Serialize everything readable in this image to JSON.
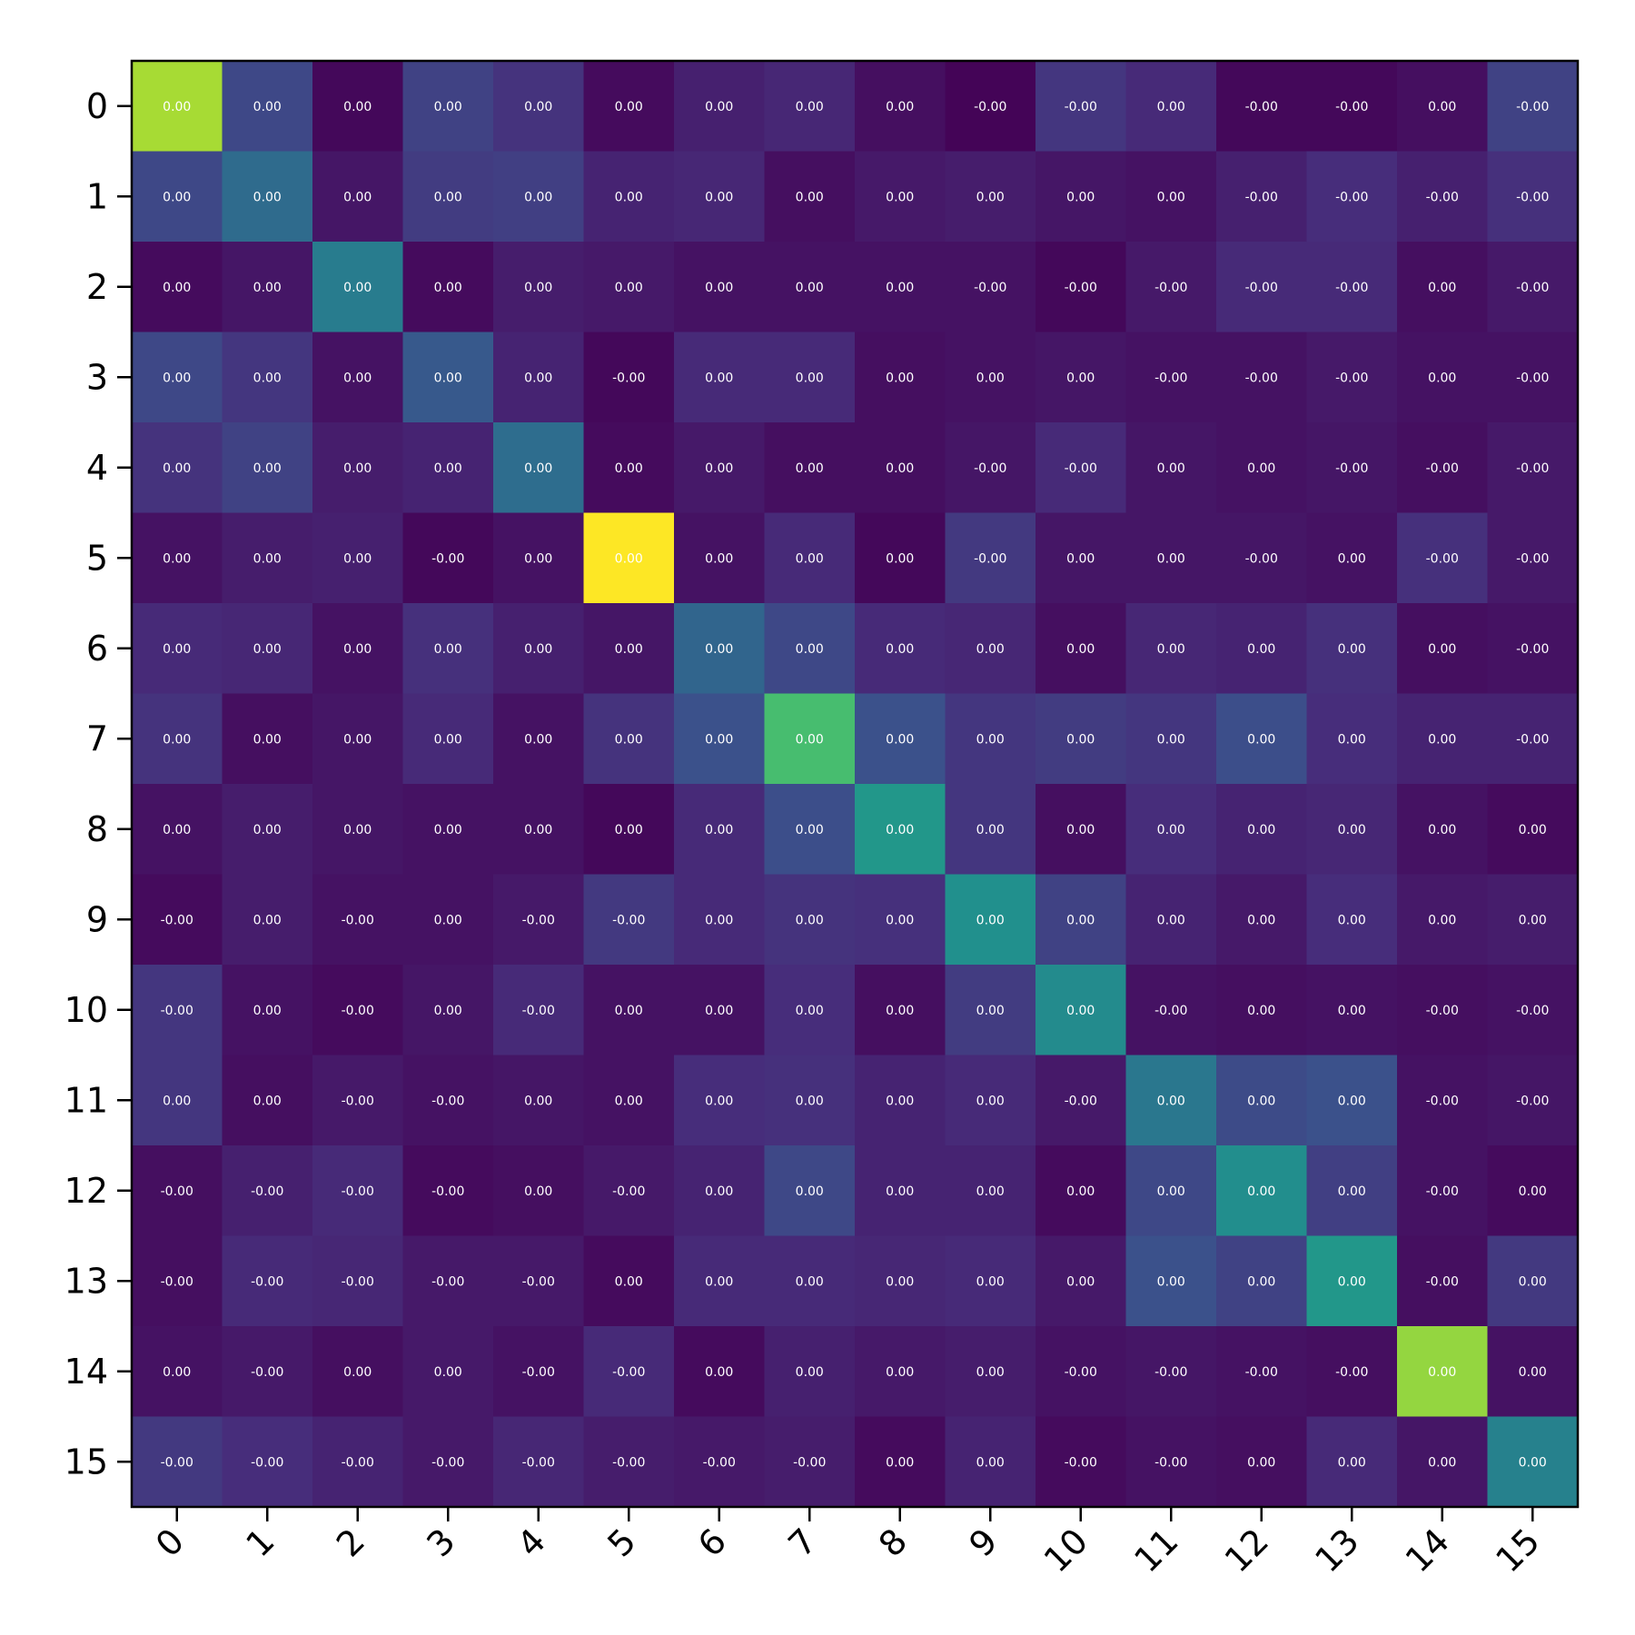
{
  "chart_data": {
    "type": "heatmap",
    "title": "",
    "xlabel": "",
    "ylabel": "",
    "x_ticks": [
      "0",
      "1",
      "2",
      "3",
      "4",
      "5",
      "6",
      "7",
      "8",
      "9",
      "10",
      "11",
      "12",
      "13",
      "14",
      "15"
    ],
    "y_ticks": [
      "0",
      "1",
      "2",
      "3",
      "4",
      "5",
      "6",
      "7",
      "8",
      "9",
      "10",
      "11",
      "12",
      "13",
      "14",
      "15"
    ],
    "colormap": "viridis",
    "grid": false,
    "legend": "none",
    "intensity": [
      [
        0.87,
        0.22,
        0.02,
        0.2,
        0.15,
        0.03,
        0.09,
        0.11,
        0.04,
        0.01,
        0.16,
        0.12,
        0.02,
        0.02,
        0.04,
        0.2
      ],
      [
        0.22,
        0.35,
        0.06,
        0.18,
        0.19,
        0.1,
        0.11,
        0.04,
        0.07,
        0.08,
        0.06,
        0.05,
        0.09,
        0.13,
        0.09,
        0.14
      ],
      [
        0.03,
        0.06,
        0.42,
        0.03,
        0.08,
        0.07,
        0.05,
        0.05,
        0.05,
        0.05,
        0.02,
        0.07,
        0.12,
        0.12,
        0.04,
        0.07
      ],
      [
        0.22,
        0.16,
        0.05,
        0.28,
        0.1,
        0.02,
        0.12,
        0.12,
        0.04,
        0.05,
        0.06,
        0.05,
        0.05,
        0.07,
        0.05,
        0.05
      ],
      [
        0.15,
        0.2,
        0.08,
        0.1,
        0.36,
        0.03,
        0.07,
        0.04,
        0.04,
        0.06,
        0.12,
        0.06,
        0.05,
        0.06,
        0.04,
        0.07
      ],
      [
        0.05,
        0.08,
        0.09,
        0.02,
        0.05,
        1.0,
        0.05,
        0.12,
        0.02,
        0.17,
        0.06,
        0.06,
        0.06,
        0.05,
        0.14,
        0.07
      ],
      [
        0.12,
        0.11,
        0.05,
        0.14,
        0.09,
        0.06,
        0.33,
        0.22,
        0.12,
        0.11,
        0.04,
        0.11,
        0.1,
        0.14,
        0.04,
        0.05
      ],
      [
        0.15,
        0.04,
        0.06,
        0.12,
        0.05,
        0.15,
        0.25,
        0.7,
        0.25,
        0.16,
        0.18,
        0.16,
        0.24,
        0.13,
        0.1,
        0.1
      ],
      [
        0.05,
        0.08,
        0.06,
        0.05,
        0.05,
        0.02,
        0.12,
        0.24,
        0.53,
        0.16,
        0.04,
        0.13,
        0.1,
        0.11,
        0.05,
        0.03
      ],
      [
        0.03,
        0.08,
        0.05,
        0.05,
        0.07,
        0.17,
        0.12,
        0.15,
        0.14,
        0.5,
        0.2,
        0.1,
        0.07,
        0.13,
        0.07,
        0.08
      ],
      [
        0.16,
        0.05,
        0.03,
        0.06,
        0.12,
        0.05,
        0.05,
        0.13,
        0.04,
        0.18,
        0.48,
        0.05,
        0.04,
        0.05,
        0.04,
        0.05
      ],
      [
        0.16,
        0.04,
        0.07,
        0.05,
        0.06,
        0.05,
        0.13,
        0.14,
        0.1,
        0.12,
        0.07,
        0.4,
        0.23,
        0.25,
        0.05,
        0.06
      ],
      [
        0.04,
        0.09,
        0.12,
        0.03,
        0.04,
        0.07,
        0.1,
        0.22,
        0.1,
        0.1,
        0.03,
        0.22,
        0.49,
        0.19,
        0.05,
        0.03
      ],
      [
        0.04,
        0.12,
        0.11,
        0.07,
        0.07,
        0.03,
        0.12,
        0.12,
        0.11,
        0.12,
        0.07,
        0.25,
        0.2,
        0.53,
        0.04,
        0.17
      ],
      [
        0.05,
        0.07,
        0.04,
        0.07,
        0.05,
        0.12,
        0.03,
        0.09,
        0.07,
        0.08,
        0.05,
        0.06,
        0.05,
        0.04,
        0.84,
        0.05
      ],
      [
        0.17,
        0.13,
        0.1,
        0.07,
        0.11,
        0.08,
        0.07,
        0.08,
        0.03,
        0.1,
        0.03,
        0.05,
        0.04,
        0.12,
        0.06,
        0.44
      ]
    ],
    "annotations": [
      [
        "0.00",
        "0.00",
        "0.00",
        "0.00",
        "0.00",
        "0.00",
        "0.00",
        "0.00",
        "0.00",
        "-0.00",
        "-0.00",
        "0.00",
        "-0.00",
        "-0.00",
        "0.00",
        "-0.00"
      ],
      [
        "0.00",
        "0.00",
        "0.00",
        "0.00",
        "0.00",
        "0.00",
        "0.00",
        "0.00",
        "0.00",
        "0.00",
        "0.00",
        "0.00",
        "-0.00",
        "-0.00",
        "-0.00",
        "-0.00"
      ],
      [
        "0.00",
        "0.00",
        "0.00",
        "0.00",
        "0.00",
        "0.00",
        "0.00",
        "0.00",
        "0.00",
        "-0.00",
        "-0.00",
        "-0.00",
        "-0.00",
        "-0.00",
        "0.00",
        "-0.00"
      ],
      [
        "0.00",
        "0.00",
        "0.00",
        "0.00",
        "0.00",
        "-0.00",
        "0.00",
        "0.00",
        "0.00",
        "0.00",
        "0.00",
        "-0.00",
        "-0.00",
        "-0.00",
        "0.00",
        "-0.00"
      ],
      [
        "0.00",
        "0.00",
        "0.00",
        "0.00",
        "0.00",
        "0.00",
        "0.00",
        "0.00",
        "0.00",
        "-0.00",
        "-0.00",
        "0.00",
        "0.00",
        "-0.00",
        "-0.00",
        "-0.00"
      ],
      [
        "0.00",
        "0.00",
        "0.00",
        "-0.00",
        "0.00",
        "0.00",
        "0.00",
        "0.00",
        "0.00",
        "-0.00",
        "0.00",
        "0.00",
        "-0.00",
        "0.00",
        "-0.00",
        "-0.00"
      ],
      [
        "0.00",
        "0.00",
        "0.00",
        "0.00",
        "0.00",
        "0.00",
        "0.00",
        "0.00",
        "0.00",
        "0.00",
        "0.00",
        "0.00",
        "0.00",
        "0.00",
        "0.00",
        "-0.00"
      ],
      [
        "0.00",
        "0.00",
        "0.00",
        "0.00",
        "0.00",
        "0.00",
        "0.00",
        "0.00",
        "0.00",
        "0.00",
        "0.00",
        "0.00",
        "0.00",
        "0.00",
        "0.00",
        "-0.00"
      ],
      [
        "0.00",
        "0.00",
        "0.00",
        "0.00",
        "0.00",
        "0.00",
        "0.00",
        "0.00",
        "0.00",
        "0.00",
        "0.00",
        "0.00",
        "0.00",
        "0.00",
        "0.00",
        "0.00"
      ],
      [
        "-0.00",
        "0.00",
        "-0.00",
        "0.00",
        "-0.00",
        "-0.00",
        "0.00",
        "0.00",
        "0.00",
        "0.00",
        "0.00",
        "0.00",
        "0.00",
        "0.00",
        "0.00",
        "0.00"
      ],
      [
        "-0.00",
        "0.00",
        "-0.00",
        "0.00",
        "-0.00",
        "0.00",
        "0.00",
        "0.00",
        "0.00",
        "0.00",
        "0.00",
        "-0.00",
        "0.00",
        "0.00",
        "-0.00",
        "-0.00"
      ],
      [
        "0.00",
        "0.00",
        "-0.00",
        "-0.00",
        "0.00",
        "0.00",
        "0.00",
        "0.00",
        "0.00",
        "0.00",
        "-0.00",
        "0.00",
        "0.00",
        "0.00",
        "-0.00",
        "-0.00"
      ],
      [
        "-0.00",
        "-0.00",
        "-0.00",
        "-0.00",
        "0.00",
        "-0.00",
        "0.00",
        "0.00",
        "0.00",
        "0.00",
        "0.00",
        "0.00",
        "0.00",
        "0.00",
        "-0.00",
        "0.00"
      ],
      [
        "-0.00",
        "-0.00",
        "-0.00",
        "-0.00",
        "-0.00",
        "0.00",
        "0.00",
        "0.00",
        "0.00",
        "0.00",
        "0.00",
        "0.00",
        "0.00",
        "0.00",
        "-0.00",
        "0.00"
      ],
      [
        "0.00",
        "-0.00",
        "0.00",
        "0.00",
        "-0.00",
        "-0.00",
        "0.00",
        "0.00",
        "0.00",
        "0.00",
        "-0.00",
        "-0.00",
        "-0.00",
        "-0.00",
        "0.00",
        "0.00"
      ],
      [
        "-0.00",
        "-0.00",
        "-0.00",
        "-0.00",
        "-0.00",
        "-0.00",
        "-0.00",
        "-0.00",
        "0.00",
        "0.00",
        "-0.00",
        "-0.00",
        "0.00",
        "0.00",
        "0.00",
        "0.00"
      ]
    ]
  }
}
